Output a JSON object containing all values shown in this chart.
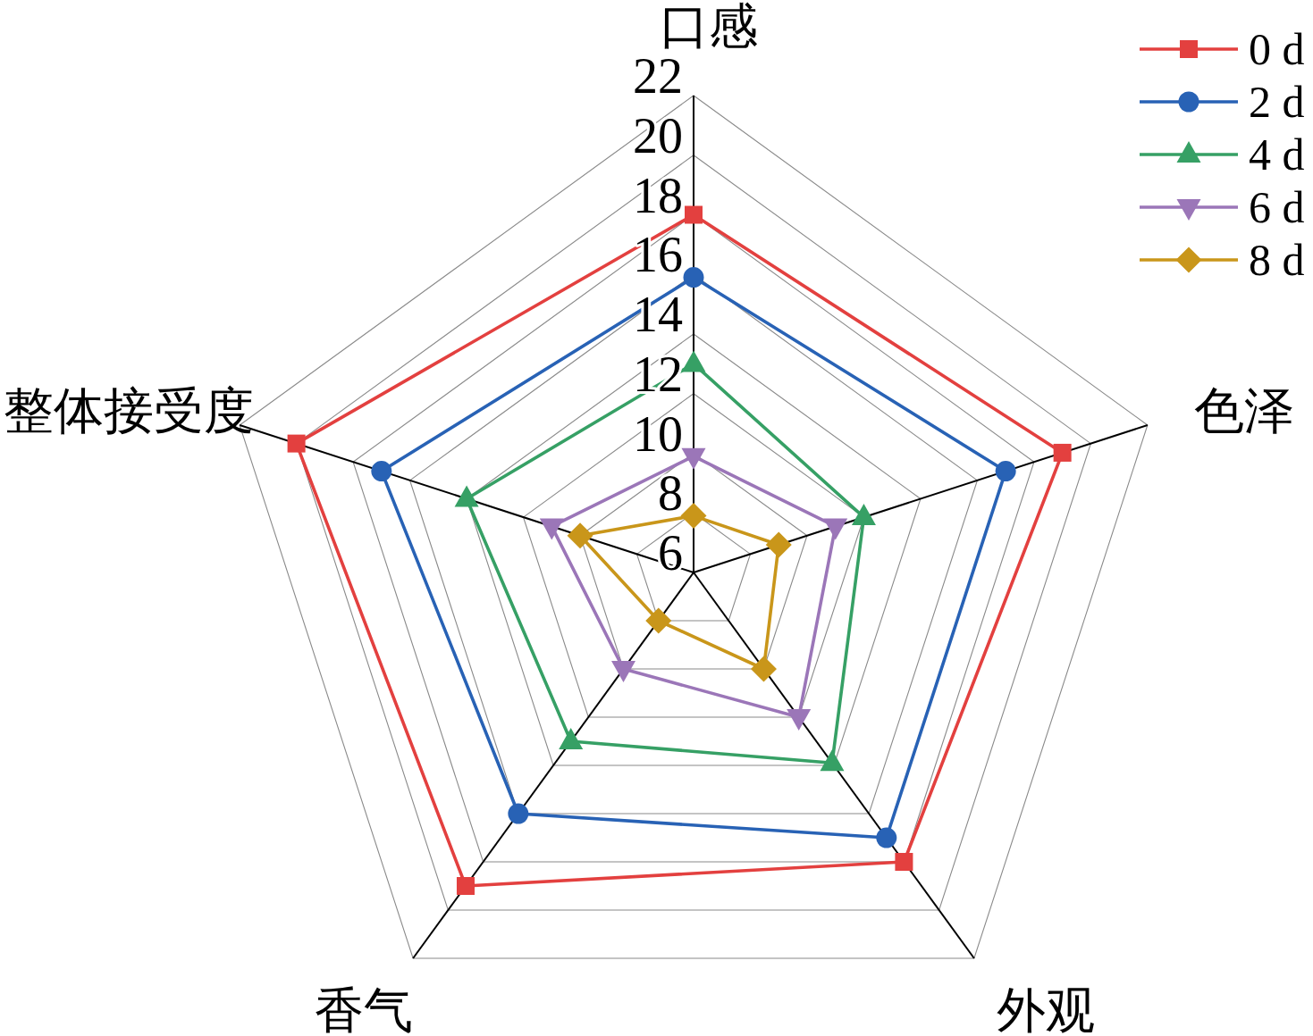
{
  "chart_data": {
    "type": "radar",
    "categories": [
      "口感",
      "色泽",
      "外观",
      "香气",
      "整体接受度"
    ],
    "series": [
      {
        "name": "0 d",
        "color": "#e3403f",
        "marker": "square",
        "values": [
          18.0,
          19.0,
          18.0,
          19.0,
          20.0
        ]
      },
      {
        "name": "2 d",
        "color": "#2862b5",
        "marker": "circle",
        "values": [
          15.9,
          17.0,
          17.0,
          16.0,
          17.0
        ]
      },
      {
        "name": "4 d",
        "color": "#36a065",
        "marker": "triangle",
        "values": [
          13.0,
          12.0,
          13.9,
          13.0,
          14.0
        ]
      },
      {
        "name": "6 d",
        "color": "#9b76b8",
        "marker": "triangle-down",
        "values": [
          9.9,
          11.0,
          12.0,
          10.0,
          11.0
        ]
      },
      {
        "name": "8 d",
        "color": "#c9961a",
        "marker": "diamond",
        "values": [
          7.9,
          9.0,
          10.0,
          8.0,
          10.0
        ]
      }
    ],
    "ylim": [
      6,
      22
    ],
    "yticks": [
      6,
      8,
      10,
      12,
      14,
      16,
      18,
      20,
      22
    ],
    "grid": true,
    "legend": "top right",
    "line_style": "solid"
  }
}
